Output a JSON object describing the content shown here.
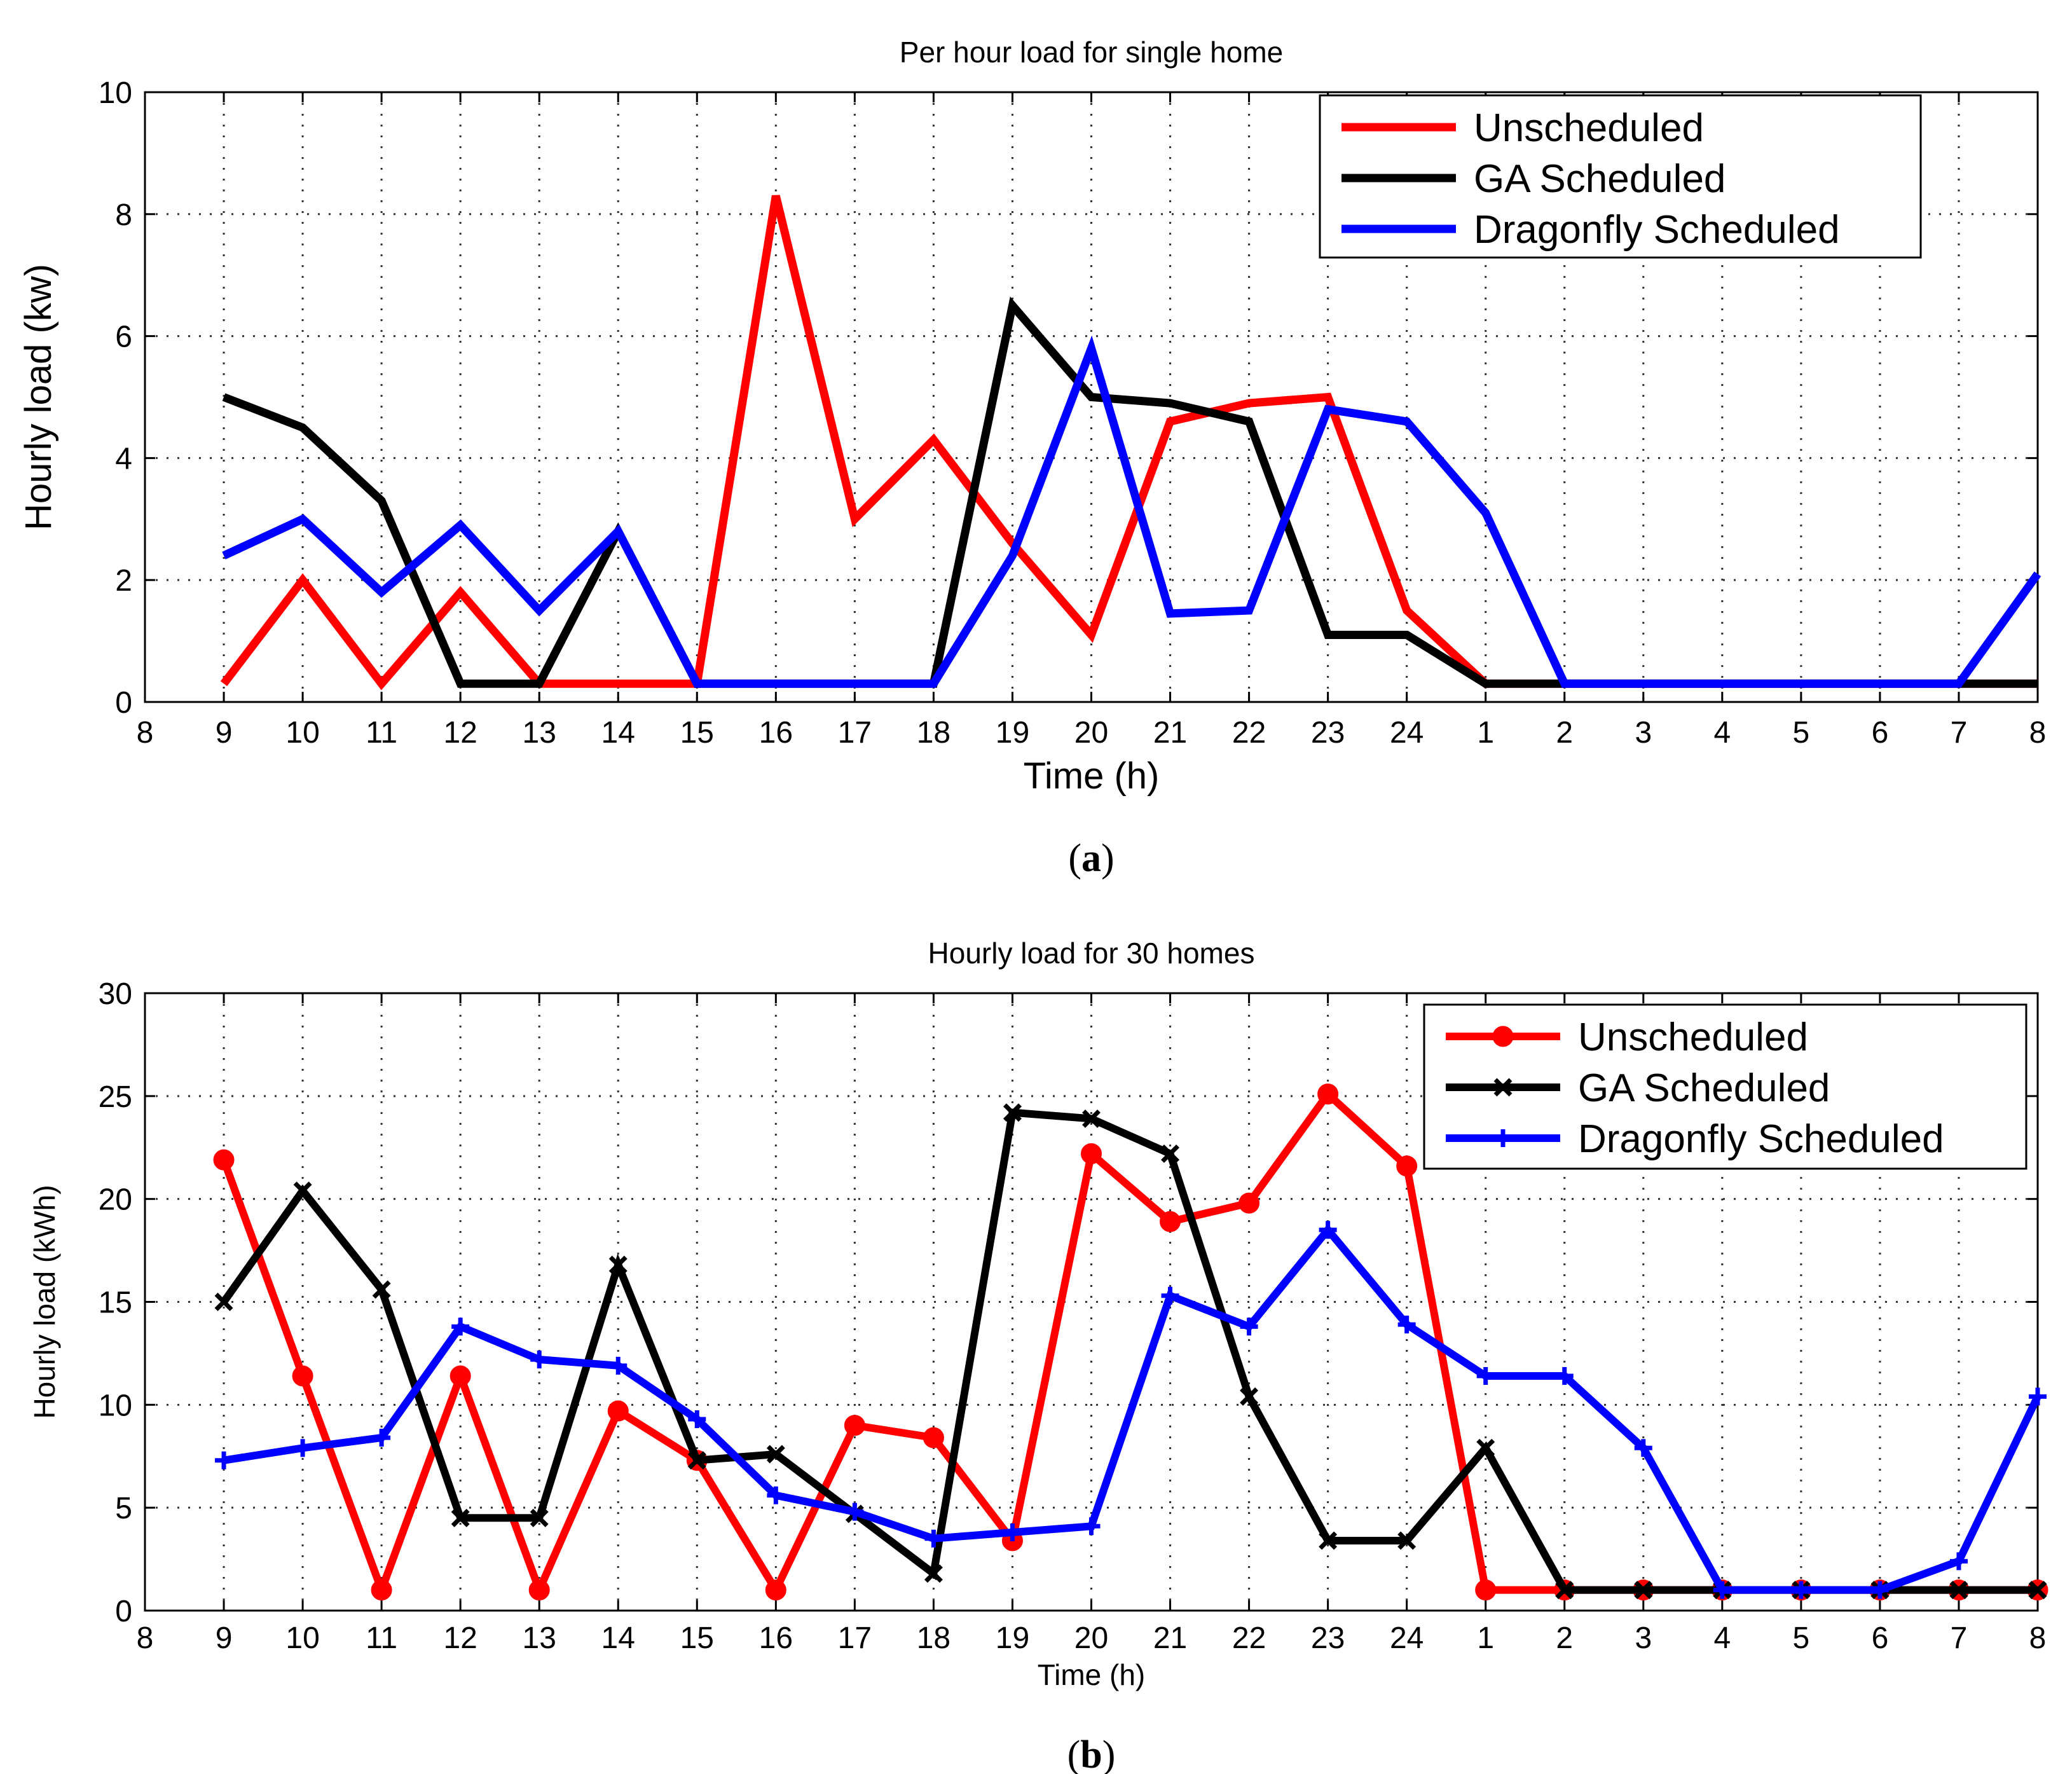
{
  "chart_data": [
    {
      "type": "line",
      "panel": "a",
      "caption_letter": "a",
      "title": "Per hour load for single home",
      "xlabel": "Time (h)",
      "ylabel": "Hourly load (kw)",
      "categories": [
        "8",
        "9",
        "10",
        "11",
        "12",
        "13",
        "14",
        "15",
        "16",
        "17",
        "18",
        "19",
        "20",
        "21",
        "22",
        "23",
        "24",
        "1",
        "2",
        "3",
        "4",
        "5",
        "6",
        "7",
        "8"
      ],
      "ylim": [
        0,
        10
      ],
      "yticks": [
        0,
        2,
        4,
        6,
        8,
        10
      ],
      "grid": true,
      "legend_position": "top-right",
      "markers": false,
      "series": [
        {
          "name": "Unscheduled",
          "color": "#ff0000",
          "marker": "none",
          "values": [
            null,
            0.3,
            2.0,
            0.3,
            1.8,
            0.3,
            0.3,
            0.3,
            8.3,
            3.0,
            4.3,
            2.6,
            1.1,
            4.6,
            4.9,
            5.0,
            1.5,
            0.3,
            0.3,
            0.3,
            0.3,
            0.3,
            0.3,
            0.3,
            0.3
          ]
        },
        {
          "name": "GA Scheduled",
          "color": "#000000",
          "marker": "none",
          "values": [
            null,
            5.0,
            4.5,
            3.3,
            0.3,
            0.3,
            2.8,
            0.3,
            0.3,
            0.3,
            0.3,
            6.5,
            5.0,
            4.9,
            4.6,
            1.1,
            1.1,
            0.3,
            0.3,
            0.3,
            0.3,
            0.3,
            0.3,
            0.3,
            0.3
          ]
        },
        {
          "name": "Dragonfly Scheduled",
          "color": "#0000ff",
          "marker": "none",
          "values": [
            null,
            2.4,
            3.0,
            1.8,
            2.9,
            1.5,
            2.8,
            0.3,
            0.3,
            0.3,
            0.3,
            2.4,
            5.8,
            1.45,
            1.5,
            4.8,
            4.6,
            3.1,
            0.3,
            0.3,
            0.3,
            0.3,
            0.3,
            0.3,
            2.1
          ]
        }
      ]
    },
    {
      "type": "line",
      "panel": "b",
      "caption_letter": "b",
      "title": "Hourly load for 30 homes",
      "xlabel": "Time (h)",
      "ylabel": "Hourly load (kWh)",
      "categories": [
        "8",
        "9",
        "10",
        "11",
        "12",
        "13",
        "14",
        "15",
        "16",
        "17",
        "18",
        "19",
        "20",
        "21",
        "22",
        "23",
        "24",
        "1",
        "2",
        "3",
        "4",
        "5",
        "6",
        "7",
        "8"
      ],
      "ylim": [
        0,
        30
      ],
      "yticks": [
        0,
        5,
        10,
        15,
        20,
        25,
        30
      ],
      "grid": true,
      "legend_position": "top-right",
      "markers": true,
      "series": [
        {
          "name": "Unscheduled",
          "color": "#ff0000",
          "marker": "circle",
          "values": [
            null,
            21.9,
            11.4,
            1.0,
            11.4,
            1.0,
            9.7,
            7.3,
            1.0,
            9.0,
            8.4,
            3.4,
            22.2,
            18.9,
            19.8,
            25.1,
            21.6,
            1.0,
            1.0,
            1.0,
            1.0,
            1.0,
            1.0,
            1.0,
            1.0
          ]
        },
        {
          "name": "GA Scheduled",
          "color": "#000000",
          "marker": "x",
          "values": [
            null,
            15.0,
            20.4,
            15.6,
            4.5,
            4.5,
            16.8,
            7.3,
            7.6,
            4.7,
            1.8,
            24.2,
            23.9,
            22.2,
            10.4,
            3.4,
            3.4,
            7.9,
            1.0,
            1.0,
            1.0,
            1.0,
            1.0,
            1.0,
            1.0
          ]
        },
        {
          "name": "Dragonfly Scheduled",
          "color": "#0000ff",
          "marker": "plus",
          "values": [
            null,
            7.3,
            7.9,
            8.4,
            13.8,
            12.2,
            11.9,
            9.3,
            5.6,
            4.8,
            3.5,
            3.8,
            4.1,
            15.3,
            13.8,
            18.5,
            13.9,
            11.4,
            11.4,
            7.9,
            1.0,
            1.0,
            1.0,
            2.4,
            10.4
          ]
        }
      ]
    }
  ]
}
